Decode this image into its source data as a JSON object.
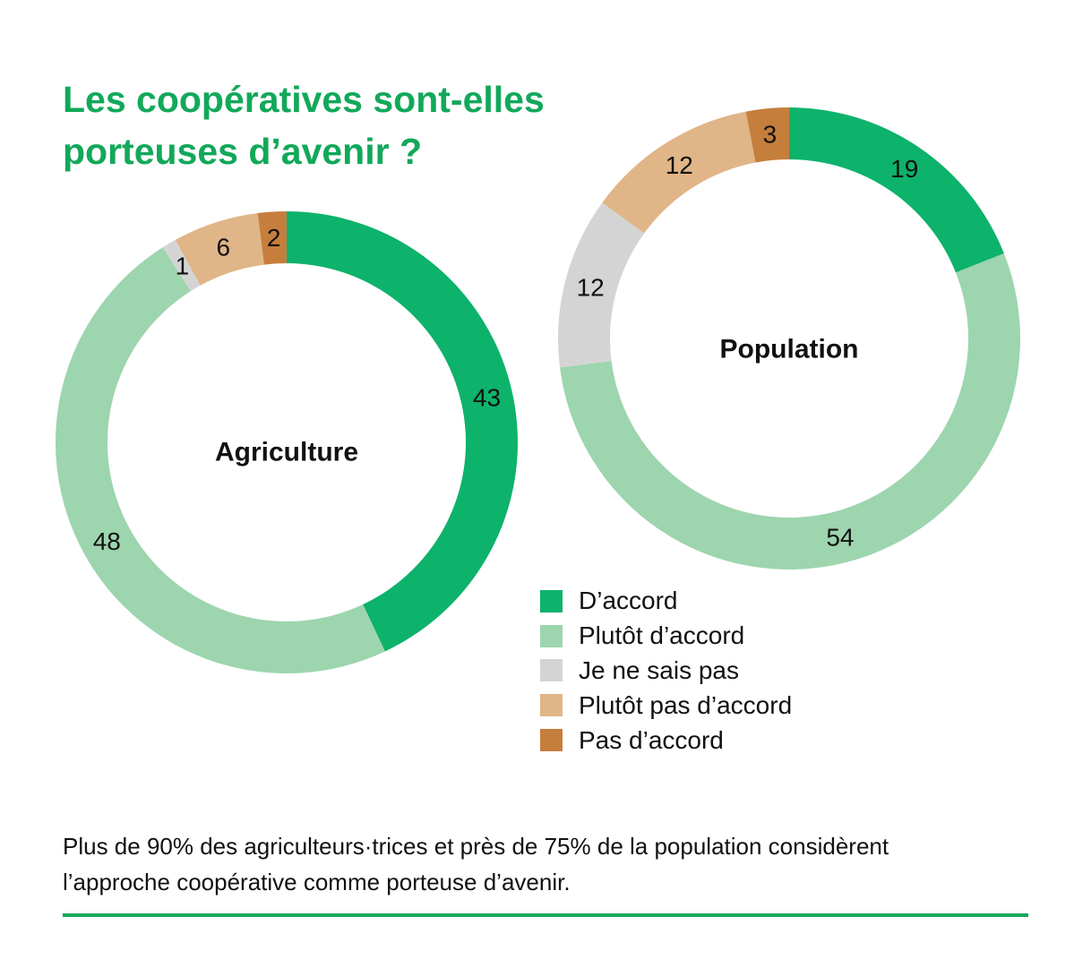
{
  "title": {
    "line1": "Les coopératives sont-elles",
    "line2": "porteuses d’avenir ?"
  },
  "chart_data": {
    "type": "donut",
    "categories": [
      "D’accord",
      "Plutôt d’accord",
      "Je ne sais pas",
      "Plutôt pas d’accord",
      "Pas d’accord"
    ],
    "colors": [
      "#0db26b",
      "#9dd5ae",
      "#d4d4d4",
      "#e0b588",
      "#c67e3c"
    ],
    "series": [
      {
        "name": "Agriculture",
        "values": [
          43,
          48,
          1,
          6,
          2
        ]
      },
      {
        "name": "Population",
        "values": [
          19,
          54,
          12,
          12,
          3
        ]
      }
    ]
  },
  "caption": {
    "line1": "Plus de 90% des agriculteurs·trices et près de 75% de la population considèrent",
    "line2": "l’approche coopérative comme porteuse d’avenir."
  }
}
